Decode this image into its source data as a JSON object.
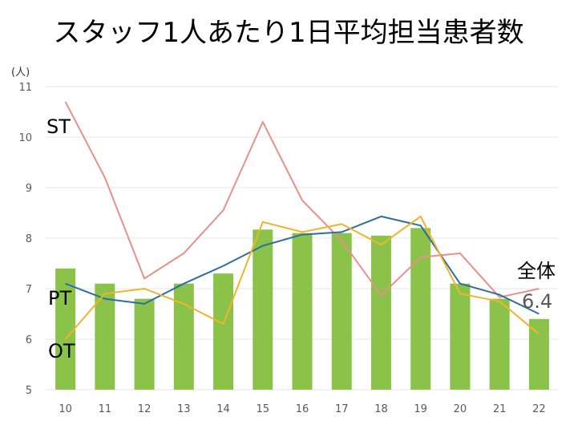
{
  "chart_data": {
    "type": "bar+line",
    "title": "スタッフ1人あたり1日平均担当患者数",
    "unit_label": "(人)",
    "categories": [
      "10",
      "11",
      "12",
      "13",
      "14",
      "15",
      "16",
      "17",
      "18",
      "19",
      "20",
      "21",
      "22"
    ],
    "ylim": [
      5,
      11
    ],
    "yticks": [
      "5",
      "6",
      "7",
      "8",
      "9",
      "10",
      "11"
    ],
    "grid": true,
    "bars": {
      "name": "全体",
      "color": "#8bc34a",
      "values": [
        7.4,
        7.1,
        6.8,
        7.1,
        7.3,
        8.17,
        8.1,
        8.1,
        8.05,
        8.2,
        7.1,
        6.8,
        6.4
      ],
      "last_value_label": "6.4"
    },
    "series": [
      {
        "name": "ST",
        "color": "#e8908a",
        "values": [
          10.7,
          9.2,
          7.2,
          7.7,
          8.55,
          10.3,
          8.75,
          7.95,
          6.87,
          7.62,
          7.7,
          6.83,
          7.0
        ]
      },
      {
        "name": "PT",
        "color": "#2e6da4",
        "values": [
          7.1,
          6.8,
          6.7,
          7.1,
          7.45,
          7.85,
          8.07,
          8.12,
          8.43,
          8.25,
          7.1,
          6.88,
          6.5
        ]
      },
      {
        "name": "OT",
        "color": "#f0b429",
        "values": [
          6.0,
          6.9,
          7.0,
          6.7,
          6.3,
          8.32,
          8.12,
          8.28,
          7.87,
          8.43,
          6.9,
          6.75,
          6.1
        ]
      }
    ]
  }
}
